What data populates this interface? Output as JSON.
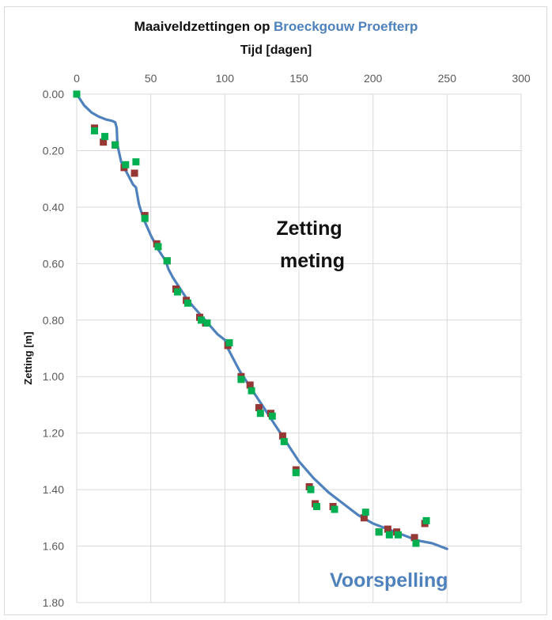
{
  "chart_data": {
    "type": "scatter",
    "title": "Maaiveldzettingen op",
    "title_highlight": "Broeckgouw Proefterp",
    "xlabel": "Tijd [dagen]",
    "ylabel": "Zetting [m]",
    "xlim": [
      0,
      300
    ],
    "ylim": [
      0,
      1.8
    ],
    "y_inverted": true,
    "x_axis_position": "top",
    "x_ticks": [
      "0",
      "50",
      "100",
      "150",
      "200",
      "250",
      "300"
    ],
    "y_ticks": [
      "0.00",
      "0.20",
      "0.40",
      "0.60",
      "0.80",
      "1.00",
      "1.20",
      "1.40",
      "1.60",
      "1.80"
    ],
    "grid": true,
    "annotations": [
      {
        "text_lines": [
          "Zetting",
          "meting"
        ]
      },
      {
        "text": "Voorspelling"
      }
    ],
    "colors": {
      "accent": "#4f81bd",
      "line": "#4f81bd",
      "measurement_red": "#953735",
      "measurement_green": "#00b050",
      "grid": "#d9d9d9"
    },
    "series": [
      {
        "type": "line",
        "color": "#4f81bd",
        "x": [
          0,
          5,
          10,
          15,
          20,
          24,
          26,
          27,
          27.5,
          30,
          35,
          38,
          40,
          42,
          45,
          50,
          55,
          60,
          62,
          65,
          70,
          75,
          80,
          85,
          90,
          95,
          100,
          102,
          105,
          110,
          115,
          120,
          125,
          130,
          135,
          140,
          145,
          150,
          160,
          170,
          180,
          190,
          200,
          210,
          220,
          230,
          240,
          250
        ],
        "y": [
          0,
          0.04,
          0.065,
          0.08,
          0.09,
          0.095,
          0.1,
          0.12,
          0.18,
          0.24,
          0.29,
          0.32,
          0.33,
          0.39,
          0.44,
          0.5,
          0.55,
          0.59,
          0.62,
          0.65,
          0.69,
          0.73,
          0.76,
          0.79,
          0.82,
          0.85,
          0.87,
          0.9,
          0.93,
          0.98,
          1.02,
          1.06,
          1.1,
          1.14,
          1.18,
          1.22,
          1.26,
          1.3,
          1.36,
          1.41,
          1.45,
          1.49,
          1.52,
          1.54,
          1.56,
          1.58,
          1.59,
          1.61
        ]
      },
      {
        "type": "scatter",
        "color": "#953735",
        "x": [
          0,
          12,
          18,
          26,
          32,
          39,
          46,
          54,
          61,
          67,
          74,
          83,
          87,
          102,
          111,
          117,
          123,
          131,
          139,
          148,
          157,
          161,
          173,
          194,
          204,
          210,
          216,
          228,
          235
        ],
        "y": [
          0,
          0.12,
          0.17,
          0.18,
          0.26,
          0.28,
          0.43,
          0.53,
          0.59,
          0.69,
          0.73,
          0.79,
          0.81,
          0.89,
          1.0,
          1.03,
          1.11,
          1.13,
          1.21,
          1.33,
          1.39,
          1.45,
          1.46,
          1.5,
          1.55,
          1.54,
          1.55,
          1.57,
          1.52
        ]
      },
      {
        "type": "scatter",
        "color": "#00b050",
        "x": [
          0,
          12,
          19,
          26,
          33,
          40,
          46,
          55,
          61,
          68,
          75,
          84,
          88,
          103,
          111,
          118,
          124,
          132,
          140,
          148,
          158,
          162,
          174,
          195,
          204,
          211,
          217,
          229,
          236
        ],
        "y": [
          0,
          0.13,
          0.15,
          0.18,
          0.25,
          0.24,
          0.44,
          0.54,
          0.59,
          0.7,
          0.74,
          0.8,
          0.81,
          0.88,
          1.01,
          1.05,
          1.13,
          1.14,
          1.23,
          1.34,
          1.4,
          1.46,
          1.47,
          1.48,
          1.55,
          1.56,
          1.56,
          1.59,
          1.51
        ]
      }
    ]
  }
}
